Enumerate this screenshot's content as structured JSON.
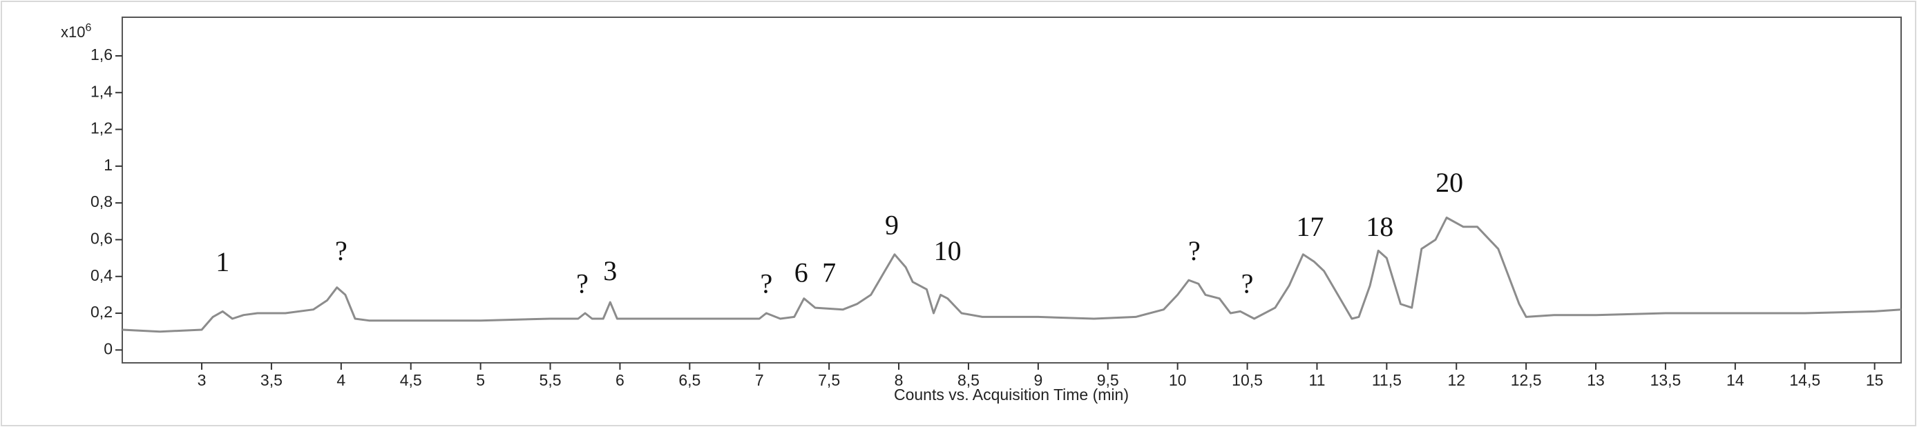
{
  "chart_data": {
    "type": "line",
    "x_label": "Counts vs. Acquisition Time (min)",
    "y_multiplier": "x10",
    "y_exponent": "6",
    "xlim": [
      2.43,
      15.19
    ],
    "ylim": [
      -0.07,
      1.81
    ],
    "xticks": [
      3,
      {
        "value": 3.5,
        "label": "3,5"
      },
      4,
      {
        "value": 4.5,
        "label": "4,5"
      },
      5,
      {
        "value": 5.5,
        "label": "5,5"
      },
      6,
      {
        "value": 6.5,
        "label": "6,5"
      },
      7,
      {
        "value": 7.5,
        "label": "7,5"
      },
      8,
      {
        "value": 8.5,
        "label": "8,5"
      },
      9,
      {
        "value": 9.5,
        "label": "9,5"
      },
      10,
      {
        "value": 10.5,
        "label": "10,5"
      },
      11,
      {
        "value": 11.5,
        "label": "11,5"
      },
      12,
      {
        "value": 12.5,
        "label": "12,5"
      },
      13,
      {
        "value": 13.5,
        "label": "13,5"
      },
      14,
      {
        "value": 14.5,
        "label": "14,5"
      },
      15
    ],
    "yticks": [
      0,
      {
        "value": 0.2,
        "label": "0,2"
      },
      {
        "value": 0.4,
        "label": "0,4"
      },
      {
        "value": 0.6,
        "label": "0,6"
      },
      {
        "value": 0.8,
        "label": "0,8"
      },
      1,
      {
        "value": 1.2,
        "label": "1,2"
      },
      {
        "value": 1.4,
        "label": "1,4"
      },
      {
        "value": 1.6,
        "label": "1,6"
      }
    ],
    "x": [
      2.43,
      2.7,
      3.0,
      3.08,
      3.15,
      3.22,
      3.3,
      3.4,
      3.6,
      3.8,
      3.9,
      3.97,
      4.03,
      4.1,
      4.2,
      4.6,
      5.0,
      5.5,
      5.7,
      5.75,
      5.8,
      5.88,
      5.93,
      5.98,
      6.3,
      6.7,
      7.0,
      7.05,
      7.15,
      7.25,
      7.32,
      7.4,
      7.6,
      7.7,
      7.8,
      7.9,
      7.97,
      8.05,
      8.1,
      8.2,
      8.25,
      8.3,
      8.35,
      8.45,
      8.6,
      9.0,
      9.4,
      9.7,
      9.9,
      10.0,
      10.08,
      10.15,
      10.2,
      10.3,
      10.38,
      10.45,
      10.55,
      10.7,
      10.8,
      10.9,
      10.98,
      11.05,
      11.15,
      11.25,
      11.3,
      11.38,
      11.44,
      11.5,
      11.6,
      11.68,
      11.75,
      11.85,
      11.93,
      12.05,
      12.15,
      12.3,
      12.45,
      12.5,
      12.7,
      13.0,
      13.5,
      14.0,
      14.5,
      15.0,
      15.19
    ],
    "series": [
      {
        "color": "#8c8c8c",
        "values": [
          0.11,
          0.1,
          0.11,
          0.18,
          0.21,
          0.17,
          0.19,
          0.2,
          0.2,
          0.22,
          0.27,
          0.34,
          0.3,
          0.17,
          0.16,
          0.16,
          0.16,
          0.17,
          0.17,
          0.2,
          0.17,
          0.17,
          0.26,
          0.17,
          0.17,
          0.17,
          0.17,
          0.2,
          0.17,
          0.18,
          0.28,
          0.23,
          0.22,
          0.25,
          0.3,
          0.43,
          0.52,
          0.45,
          0.37,
          0.33,
          0.2,
          0.3,
          0.28,
          0.2,
          0.18,
          0.18,
          0.17,
          0.18,
          0.22,
          0.3,
          0.38,
          0.36,
          0.3,
          0.28,
          0.2,
          0.21,
          0.17,
          0.23,
          0.35,
          0.52,
          0.48,
          0.43,
          0.3,
          0.17,
          0.18,
          0.35,
          0.54,
          0.5,
          0.25,
          0.23,
          0.55,
          0.6,
          0.72,
          0.67,
          0.67,
          0.55,
          0.25,
          0.18,
          0.19,
          0.19,
          0.2,
          0.2,
          0.2,
          0.21,
          0.22
        ]
      }
    ],
    "annotations": [
      {
        "text": "1",
        "x": 3.15,
        "y": 0.43
      },
      {
        "text": "?",
        "x": 4.0,
        "y": 0.49
      },
      {
        "text": "?",
        "x": 5.73,
        "y": 0.31
      },
      {
        "text": "3",
        "x": 5.93,
        "y": 0.38
      },
      {
        "text": "?",
        "x": 7.05,
        "y": 0.31
      },
      {
        "text": "6",
        "x": 7.3,
        "y": 0.37
      },
      {
        "text": "7",
        "x": 7.5,
        "y": 0.37
      },
      {
        "text": "9",
        "x": 7.95,
        "y": 0.63
      },
      {
        "text": "10",
        "x": 8.35,
        "y": 0.49
      },
      {
        "text": "?",
        "x": 10.12,
        "y": 0.49
      },
      {
        "text": "?",
        "x": 10.5,
        "y": 0.31
      },
      {
        "text": "17",
        "x": 10.95,
        "y": 0.62
      },
      {
        "text": "18",
        "x": 11.45,
        "y": 0.62
      },
      {
        "text": "20",
        "x": 11.95,
        "y": 0.86
      }
    ]
  }
}
